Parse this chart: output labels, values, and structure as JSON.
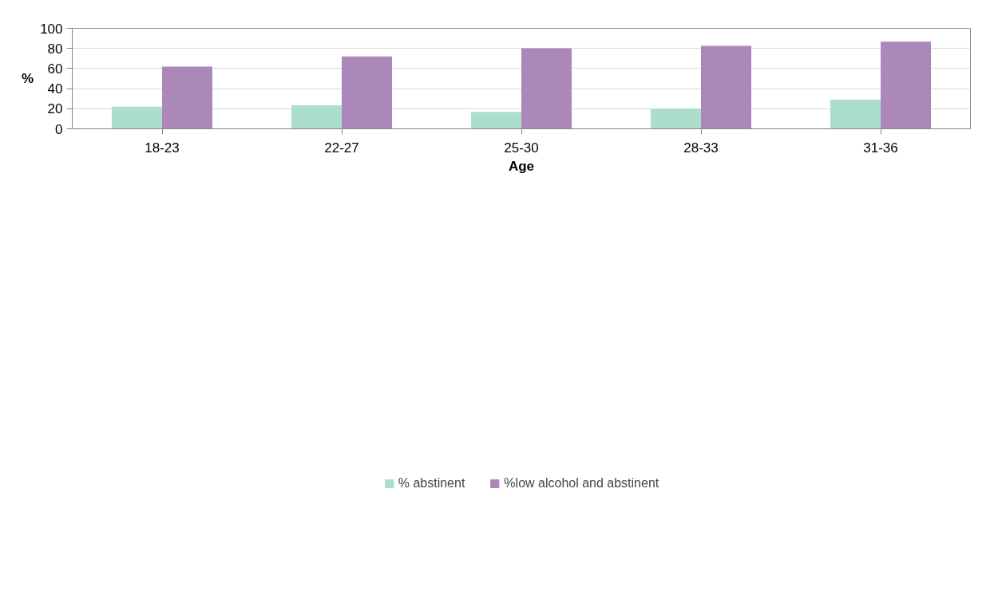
{
  "chart_data": {
    "type": "bar",
    "xlabel": "Age",
    "ylabel": "%",
    "categories": [
      "18-23",
      "22-27",
      "25-30",
      "28-33",
      "31-36"
    ],
    "series": [
      {
        "name": "% abstinent",
        "color": "#acdecd",
        "values": [
          22.1,
          23.4,
          16.8,
          20.0,
          29.0
        ]
      },
      {
        "name": "%low alcohol and abstinent",
        "color": "#ab87ba",
        "values": [
          62.0,
          72.1,
          80.2,
          82.5,
          86.8
        ]
      }
    ],
    "ylim": [
      0,
      100
    ],
    "yticks": [
      0,
      20,
      40,
      60,
      80,
      100
    ],
    "grid": "y",
    "legend": "bottom"
  }
}
